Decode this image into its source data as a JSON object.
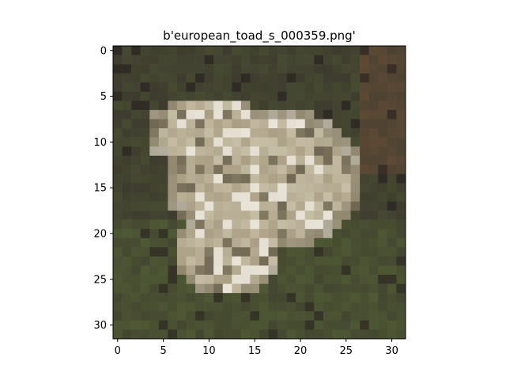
{
  "figure": {
    "title": "b'european_toad_s_000359.png'"
  },
  "image": {
    "grid_size": 32,
    "subject": "pixelated photo of a pale speckled toad on dark green-brown ground",
    "palette": {
      "ground_dark": "#3d3a2e",
      "ground_green": "#4f5a34",
      "ground_brown": "#5e4a35",
      "toad_light": "#cfc6b0",
      "toad_mid": "#a59a7e",
      "toad_shadow": "#6f6753",
      "highlight": "#e8e4d8",
      "dark_spot": "#2a2420"
    }
  },
  "axes": {
    "x_ticks": [
      "0",
      "5",
      "10",
      "15",
      "20",
      "25",
      "30"
    ],
    "y_ticks": [
      "0",
      "5",
      "10",
      "15",
      "20",
      "25",
      "30"
    ]
  }
}
